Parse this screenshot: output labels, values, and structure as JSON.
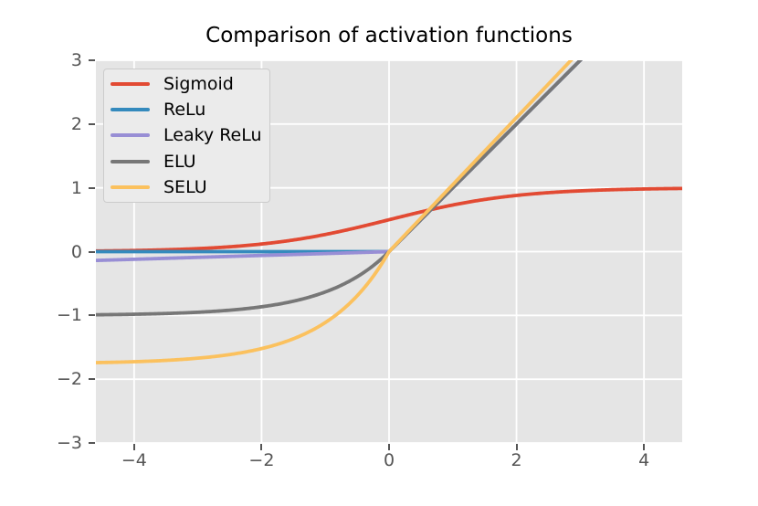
{
  "figure": {
    "background_color": "#ffffff",
    "plot_background_color": "#e5e5e5",
    "grid_color": "#ffffff",
    "tick_color": "#555555",
    "tick_label_color": "#555555",
    "title_color": "#000000",
    "legend": {
      "background_color": "#ebebeb",
      "border_color": "#cccccc",
      "text_color": "#000000"
    }
  },
  "chart_data": {
    "type": "line",
    "title": "Comparison of activation functions",
    "xlabel": "",
    "ylabel": "",
    "xlim": [
      -4.6,
      4.6
    ],
    "ylim": [
      -3,
      3
    ],
    "grid": true,
    "legend_position": "upper left",
    "x_ticks": [
      -4,
      -2,
      0,
      2,
      4
    ],
    "x_tick_labels": [
      "−4",
      "−2",
      "0",
      "2",
      "4"
    ],
    "y_ticks": [
      3,
      2,
      1,
      0,
      -1,
      -2,
      -3
    ],
    "y_tick_labels": [
      "3",
      "2",
      "1",
      "0",
      "−1",
      "−2",
      "−3"
    ],
    "sample_x": [
      -4.6,
      -4,
      -3,
      -2,
      -1,
      0,
      1,
      2,
      3,
      4,
      4.6
    ],
    "series": [
      {
        "name": "Sigmoid",
        "color": "#e24a33",
        "fn": "sigmoid",
        "params": {},
        "sample_y": [
          0.01,
          0.018,
          0.047,
          0.119,
          0.269,
          0.5,
          0.731,
          0.881,
          0.953,
          0.982,
          0.99
        ]
      },
      {
        "name": "ReLu",
        "color": "#348abd",
        "fn": "relu",
        "params": {},
        "sample_y": [
          0,
          0,
          0,
          0,
          0,
          0,
          1,
          2,
          3,
          4,
          4.6
        ]
      },
      {
        "name": "Leaky ReLu",
        "color": "#988ed5",
        "fn": "leaky_relu",
        "params": {
          "alpha": 0.03
        },
        "sample_y": [
          -0.138,
          -0.12,
          -0.09,
          -0.06,
          -0.03,
          0,
          1,
          2,
          3,
          4,
          4.6
        ]
      },
      {
        "name": "ELU",
        "color": "#777777",
        "fn": "elu",
        "params": {
          "alpha": 1.0
        },
        "sample_y": [
          -0.99,
          -0.982,
          -0.95,
          -0.865,
          -0.632,
          0,
          1,
          2,
          3,
          4,
          4.6
        ]
      },
      {
        "name": "SELU",
        "color": "#fbc15e",
        "fn": "selu",
        "params": {
          "lambda": 1.0507,
          "alpha": 1.67326
        },
        "sample_y": [
          -1.74,
          -1.726,
          -1.671,
          -1.52,
          -1.111,
          0,
          1.051,
          2.101,
          3.152,
          4.203,
          4.833
        ]
      }
    ]
  }
}
